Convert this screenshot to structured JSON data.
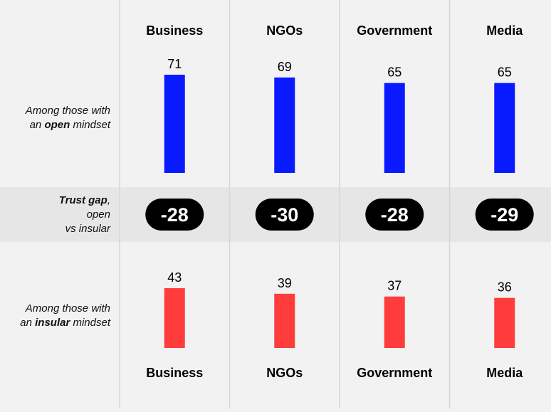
{
  "chart_data": {
    "type": "bar",
    "categories": [
      "Business",
      "NGOs",
      "Government",
      "Media"
    ],
    "series": [
      {
        "name": "Among those with an open mindset",
        "values": [
          71,
          69,
          65,
          65
        ],
        "color": "#0a1aff"
      },
      {
        "name": "Among those with an insular mindset",
        "values": [
          43,
          39,
          37,
          36
        ],
        "color": "#ff3c3c"
      }
    ],
    "trust_gap": {
      "values": [
        "-28",
        "-30",
        "-28",
        "-29"
      ]
    },
    "row_labels": {
      "open_prefix": "Among those with",
      "open_pre": "an ",
      "open_bold": "open",
      "open_post": " mindset",
      "gap_bold": "Trust gap",
      "gap_comma": ",",
      "gap_line2": "open",
      "gap_line3": "vs insular",
      "insular_prefix": "Among those with",
      "insular_pre": "an ",
      "insular_bold": "insular",
      "insular_post": " mindset"
    },
    "colors": {
      "background": "#f2f2f2",
      "gap_band": "#e6e6e6",
      "pill": "#000000",
      "grid": "#d6d6d6"
    }
  }
}
